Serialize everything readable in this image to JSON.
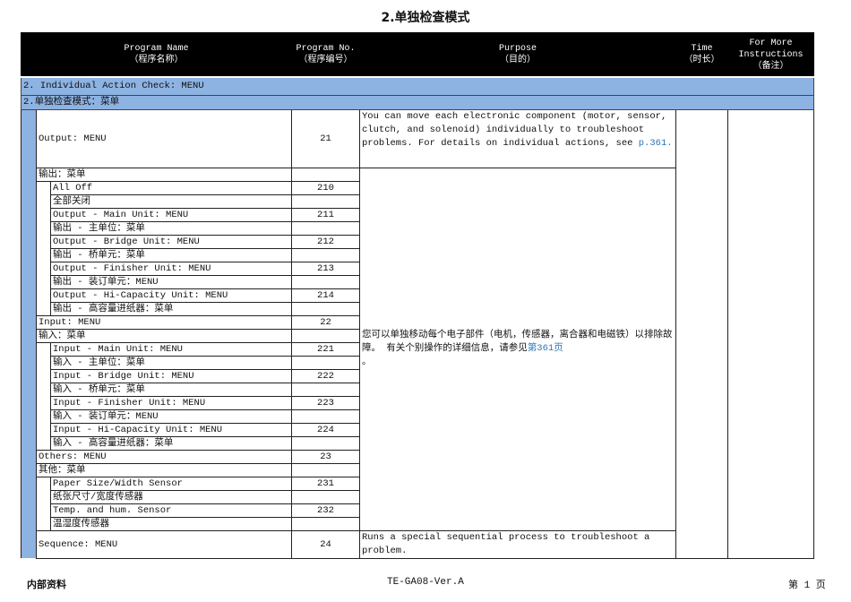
{
  "title": "2.单独检查模式",
  "header": {
    "name": [
      "Program Name",
      "（程序名称）"
    ],
    "number": [
      "Program No.",
      "（程序编号）"
    ],
    "purpose": [
      "Purpose",
      "（目的）"
    ],
    "time": [
      "Time",
      "（时长）"
    ],
    "notes": [
      "For More",
      "Instructions",
      "（备注）"
    ]
  },
  "section_en": "2. Individual Action Check: MENU",
  "section_cn": "2.单独检查模式：菜单",
  "output_row": {
    "name": "Output: MENU",
    "number": "21",
    "purpose": "You can move each electronic component (motor, sensor, clutch, and solenoid) individually to troubleshoot problems. For details on individual actions, see ",
    "purpose_link": "p.361."
  },
  "purpose_cn": "您可以单独移动每个电子部件（电机，传感器，离合器和电磁铁）以排除故障。 有关个别操作的详细信息，请参见",
  "purpose_cn_link": "第361页",
  "purpose_cn_end": "。",
  "rows": [
    {
      "name": "输出：菜单",
      "number": "",
      "level": 1
    },
    {
      "name": "All Off",
      "number": "210",
      "level": 2
    },
    {
      "name": "全部关闭",
      "number": "",
      "level": 2
    },
    {
      "name": "Output - Main Unit: MENU",
      "number": "211",
      "level": 2
    },
    {
      "name": "输出   - 主单位：菜单",
      "number": "",
      "level": 2
    },
    {
      "name": "Output - Bridge Unit: MENU",
      "number": "212",
      "level": 2
    },
    {
      "name": "输出   - 桥单元：菜单",
      "number": "",
      "level": 2
    },
    {
      "name": "Output - Finisher Unit: MENU",
      "number": "213",
      "level": 2
    },
    {
      "name": "输出   - 装订单元：MENU",
      "number": "",
      "level": 2
    },
    {
      "name": "Output - Hi-Capacity Unit: MENU",
      "number": "214",
      "level": 2
    },
    {
      "name": "输出   - 高容量进纸器：菜单",
      "number": "",
      "level": 2
    },
    {
      "name": "Input: MENU",
      "number": "22",
      "level": 1
    },
    {
      "name": "输入：菜单",
      "number": "",
      "level": 1
    },
    {
      "name": "Input - Main Unit: MENU",
      "number": "221",
      "level": 2
    },
    {
      "name": "输入  - 主单位：菜单",
      "number": "",
      "level": 2
    },
    {
      "name": "Input - Bridge Unit: MENU",
      "number": "222",
      "level": 2
    },
    {
      "name": "输入  - 桥单元：菜单",
      "number": "",
      "level": 2
    },
    {
      "name": "Input - Finisher Unit: MENU",
      "number": "223",
      "level": 2
    },
    {
      "name": "输入  - 装订单元：MENU",
      "number": "",
      "level": 2
    },
    {
      "name": "Input - Hi-Capacity Unit: MENU",
      "number": "224",
      "level": 2
    },
    {
      "name": "输入  - 高容量进纸器：菜单",
      "number": "",
      "level": 2
    },
    {
      "name": "Others: MENU",
      "number": "23",
      "level": 1
    },
    {
      "name": "其他：菜单",
      "number": "",
      "level": 1
    },
    {
      "name": "Paper Size/Width Sensor",
      "number": "231",
      "level": 2
    },
    {
      "name": "纸张尺寸/宽度传感器",
      "number": "",
      "level": 2
    },
    {
      "name": "Temp. and hum. Sensor",
      "number": "232",
      "level": 2
    },
    {
      "name": "温湿度传感器",
      "number": "",
      "level": 2
    }
  ],
  "sequence_row": {
    "name": "Sequence: MENU",
    "number": "24",
    "purpose": "Runs a special sequential process to troubleshoot a problem."
  },
  "footer": {
    "left": "内部资料",
    "center": "TE-GA08-Ver.A",
    "right": "第 1 页"
  },
  "colors": {
    "header_bg": "#000000",
    "band": "#8db3e2",
    "link": "#2e75b6"
  }
}
